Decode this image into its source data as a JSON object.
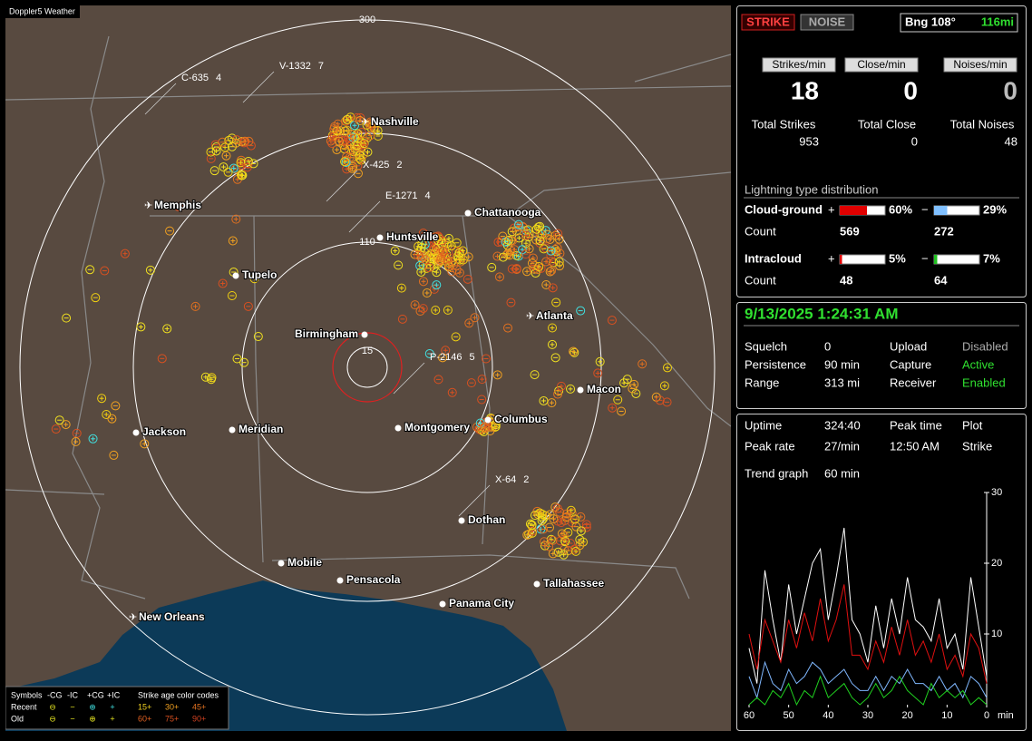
{
  "map": {
    "brand": "Doppler5 Weather",
    "ring_labels": [
      "300",
      "110",
      "15"
    ],
    "cities": [
      "Nashville",
      "Memphis",
      "Chattanooga",
      "Huntsville",
      "Tupelo",
      "Atlanta",
      "Birmingham",
      "Macon",
      "Jackson",
      "Meridian",
      "Montgomery",
      "Columbus",
      "Dothan",
      "Mobile",
      "Pensacola",
      "Tallahassee",
      "Panama City",
      "New Orleans"
    ],
    "storms": [
      {
        "id": "V-1332",
        "count": 7
      },
      {
        "id": "C-635",
        "count": 4
      },
      {
        "id": "X-425",
        "count": 2
      },
      {
        "id": "E-1271",
        "count": 4
      },
      {
        "id": "P-2146",
        "count": 5
      },
      {
        "id": "X-64",
        "count": 2
      }
    ]
  },
  "legend": {
    "title": "Symbols",
    "types": [
      "-CG",
      "-IC",
      "+CG",
      "+IC"
    ],
    "age_title": "Strike age color codes",
    "rows": [
      "Recent",
      "Old"
    ],
    "ages": [
      "15+",
      "30+",
      "45+",
      "60+",
      "75+",
      "90+"
    ]
  },
  "header": {
    "strike": "STRIKE",
    "noise": "NOISE",
    "bearing": "Bng 108°",
    "distance": "116mi"
  },
  "rates": {
    "labels": [
      "Strikes/min",
      "Close/min",
      "Noises/min"
    ],
    "values": [
      18,
      0,
      0
    ]
  },
  "totals": {
    "labels": [
      "Total Strikes",
      "Total Close",
      "Total Noises"
    ],
    "values": [
      953,
      0,
      48
    ]
  },
  "distribution": {
    "title": "Lightning type distribution",
    "count_label": "Count",
    "plus": "+",
    "minus": "−",
    "rows": [
      {
        "name": "Cloud-ground",
        "plus_pct": {
          "value": 60,
          "label": "60%"
        },
        "minus_pct": {
          "value": 29,
          "label": "29%"
        },
        "plus_count": 569,
        "minus_count": 272
      },
      {
        "name": "Intracloud",
        "plus_pct": {
          "value": 5,
          "label": "5%"
        },
        "minus_pct": {
          "value": 7,
          "label": "7%"
        },
        "plus_count": 48,
        "minus_count": 64
      }
    ]
  },
  "status": {
    "datetime": "9/13/2025 1:24:31 AM",
    "left": [
      [
        "Squelch",
        "0"
      ],
      [
        "Persistence",
        "90 min"
      ],
      [
        "Range",
        "313 mi"
      ]
    ],
    "right": [
      [
        "Upload",
        "Disabled"
      ],
      [
        "Capture",
        "Active"
      ],
      [
        "Receiver",
        "Enabled"
      ]
    ]
  },
  "stats": {
    "items": [
      [
        "Uptime",
        "324:40"
      ],
      [
        "Peak time",
        "12:50 AM"
      ],
      [
        "Plot",
        "Strike"
      ],
      [
        "Peak rate",
        "27/min"
      ]
    ],
    "trend_label": "Trend graph",
    "trend_value": "60 min"
  },
  "trend": {
    "xlim": [
      60,
      0
    ],
    "ylim": [
      0,
      30
    ],
    "yticks": [
      10,
      20,
      30
    ],
    "xticks": [
      60,
      50,
      40,
      30,
      20,
      10,
      0
    ],
    "x_unit": "min",
    "x": [
      60,
      58,
      56,
      54,
      52,
      50,
      48,
      46,
      44,
      42,
      40,
      38,
      36,
      34,
      32,
      30,
      28,
      26,
      24,
      22,
      20,
      18,
      16,
      14,
      12,
      10,
      8,
      6,
      4,
      2,
      0
    ],
    "series": [
      {
        "color": "#ffffff",
        "values": [
          8,
          3,
          19,
          12,
          6,
          17,
          10,
          15,
          20,
          22,
          12,
          18,
          25,
          12,
          10,
          6,
          14,
          8,
          15,
          10,
          18,
          12,
          11,
          9,
          15,
          8,
          10,
          5,
          18,
          11,
          4
        ]
      },
      {
        "color": "#e01010",
        "values": [
          10,
          5,
          12,
          9,
          6,
          12,
          8,
          13,
          9,
          15,
          9,
          12,
          17,
          7,
          7,
          5,
          9,
          6,
          11,
          7,
          12,
          7,
          9,
          6,
          10,
          5,
          7,
          4,
          10,
          8,
          3
        ]
      },
      {
        "color": "#80b8ff",
        "values": [
          4,
          1,
          6,
          3,
          2,
          5,
          3,
          4,
          6,
          5,
          3,
          4,
          5,
          3,
          2,
          2,
          4,
          2,
          4,
          3,
          5,
          3,
          3,
          2,
          4,
          2,
          3,
          1,
          4,
          3,
          1
        ]
      },
      {
        "color": "#20d020",
        "values": [
          0,
          1,
          0,
          2,
          1,
          3,
          0,
          2,
          1,
          4,
          1,
          2,
          3,
          1,
          0,
          1,
          3,
          1,
          2,
          4,
          2,
          1,
          0,
          3,
          1,
          2,
          1,
          2,
          0,
          1,
          0
        ]
      }
    ]
  }
}
